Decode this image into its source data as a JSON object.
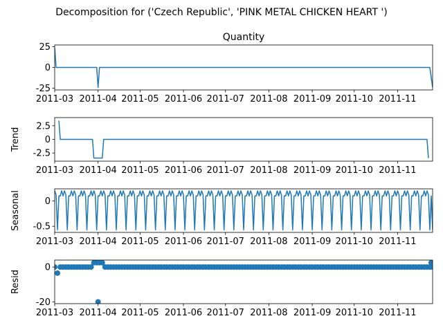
{
  "chart_data": {
    "type": "line",
    "title": "Decomposition for ('Czech Republic', 'PINK METAL CHICKEN HEART ')",
    "x_ticks": [
      "2011-03",
      "2011-04",
      "2011-05",
      "2011-06",
      "2011-07",
      "2011-08",
      "2011-09",
      "2011-10",
      "2011-11"
    ],
    "x_range": [
      "2011-03-01",
      "2011-11-26"
    ],
    "line_color": "#1f77b4",
    "panels": [
      {
        "key": "observed",
        "subplot_title": "Quantity",
        "ylabel": "",
        "style": "line",
        "ylim": [
          -27,
          27
        ],
        "yticks": [
          25,
          0,
          -25
        ],
        "points": [
          [
            "2011-03-01",
            24
          ],
          [
            "2011-03-02",
            0
          ],
          [
            "2011-03-31",
            0
          ],
          [
            "2011-04-01",
            -24
          ],
          [
            "2011-04-02",
            0
          ],
          [
            "2011-11-24",
            0
          ],
          [
            "2011-11-26",
            -24
          ]
        ]
      },
      {
        "key": "trend",
        "subplot_title": "",
        "ylabel": "Trend",
        "style": "line",
        "ylim": [
          -4.0,
          4.0
        ],
        "yticks": [
          2.5,
          0.0,
          -2.5
        ],
        "points": [
          [
            "2011-03-04",
            3.43
          ],
          [
            "2011-03-05",
            0
          ],
          [
            "2011-03-28",
            0
          ],
          [
            "2011-03-29",
            -3.43
          ],
          [
            "2011-04-04",
            -3.43
          ],
          [
            "2011-04-05",
            0
          ],
          [
            "2011-11-22",
            0
          ],
          [
            "2011-11-23",
            -3.43
          ]
        ]
      },
      {
        "key": "seasonal",
        "subplot_title": "",
        "ylabel": "Seasonal",
        "style": "line",
        "ylim": [
          -0.62,
          0.24
        ],
        "yticks": [
          0.0,
          -0.5
        ],
        "period_days": 7,
        "cycle_start": "2011-03-01",
        "pattern": [
          0.2,
          0.12,
          -0.57,
          0.1,
          0.1,
          0.2,
          0.1
        ],
        "end_value": -0.57
      },
      {
        "key": "resid",
        "subplot_title": "",
        "ylabel": "Resid",
        "style": "scatter",
        "ylim": [
          -21,
          4
        ],
        "yticks": [
          0,
          -20
        ],
        "points_step": 2,
        "default_value": 0,
        "special": [
          [
            "2011-03-03",
            -3.5
          ],
          [
            "2011-03-29",
            2.5
          ],
          [
            "2011-03-31",
            2.5
          ],
          [
            "2011-04-01",
            -20
          ],
          [
            "2011-04-02",
            2.5
          ],
          [
            "2011-04-04",
            2.5
          ],
          [
            "2011-11-25",
            2.5
          ]
        ]
      }
    ]
  }
}
